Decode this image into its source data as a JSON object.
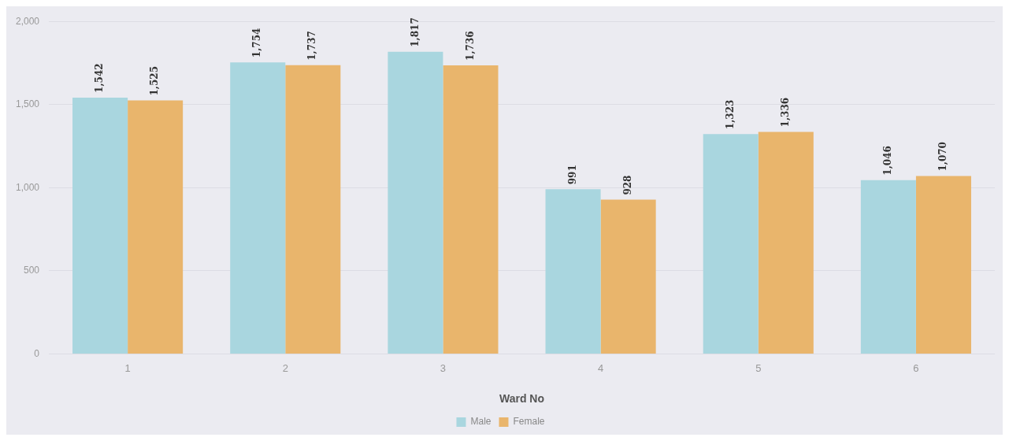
{
  "chart_data": {
    "type": "bar",
    "xlabel": "Ward No",
    "categories": [
      "1",
      "2",
      "3",
      "4",
      "5",
      "6"
    ],
    "series": [
      {
        "name": "Male",
        "color": "#a9d6df",
        "values": [
          1542,
          1754,
          1817,
          991,
          1323,
          1046
        ],
        "value_labels": [
          "1,542",
          "1,754",
          "1,817",
          "991",
          "1,323",
          "1,046"
        ]
      },
      {
        "name": "Female",
        "color": "#e9b56c",
        "values": [
          1525,
          1737,
          1736,
          928,
          1336,
          1070
        ],
        "value_labels": [
          "1,525",
          "1,737",
          "1,736",
          "928",
          "1,336",
          "1,070"
        ]
      }
    ],
    "ylim": [
      0,
      2000
    ],
    "yticks": [
      0,
      500,
      {
        "value": 1000,
        "label": "1,000"
      },
      {
        "value": 1500,
        "label": "1,500"
      },
      {
        "value": 2000,
        "label": "2,000"
      }
    ],
    "grid": "y",
    "legend": "bottom"
  }
}
